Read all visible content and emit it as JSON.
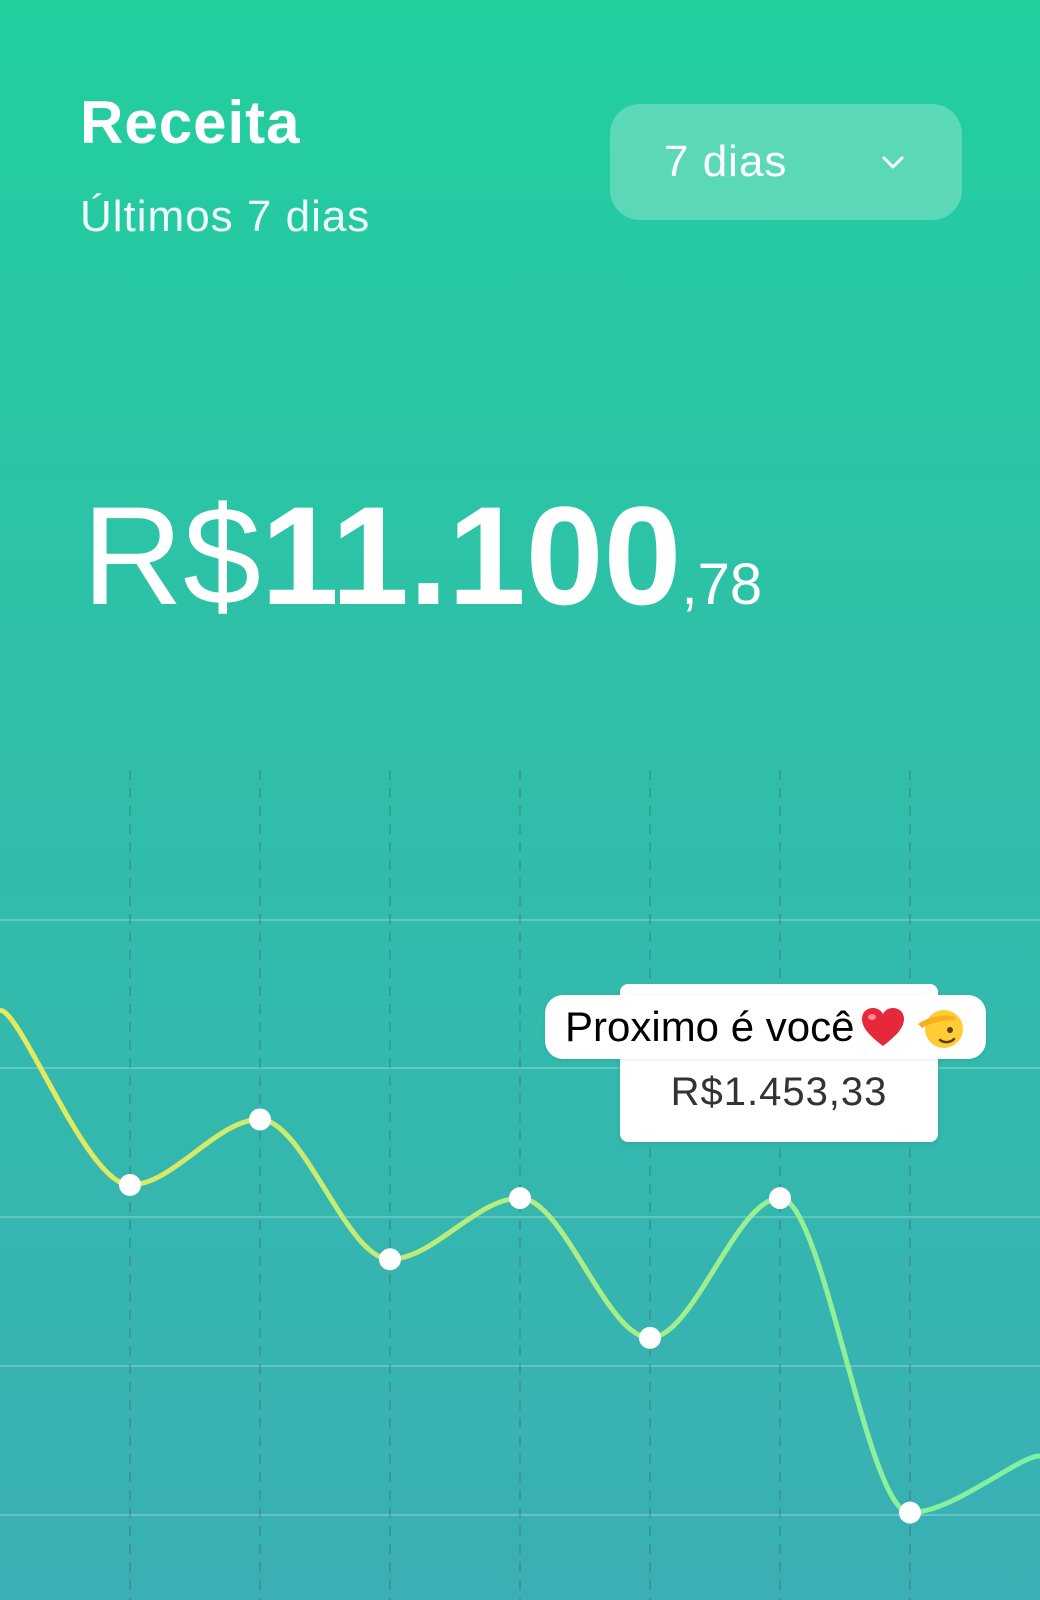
{
  "header": {
    "title": "Receita",
    "subtitle": "Últimos 7 dias"
  },
  "period_select": {
    "label": "7 dias",
    "icon": "chevron-down-icon"
  },
  "total": {
    "currency": "R$",
    "integer": "11.100",
    "cents": ",78"
  },
  "tooltip": {
    "value": "R$1.453,33"
  },
  "sticker": {
    "text": "Proximo é você",
    "icons": [
      "heart-icon",
      "saluting-face-icon"
    ]
  },
  "colors": {
    "background_top": "#22cf9f",
    "background_bottom": "#3aafb5",
    "line_start": "#e8e95a",
    "line_end": "#7cf1a6",
    "text": "#ffffff"
  },
  "chart_data": {
    "type": "line",
    "smooth": true,
    "x": [
      1,
      2,
      3,
      4,
      5,
      6,
      7
    ],
    "values": [
      1750,
      1900,
      1580,
      1720,
      1400,
      1720,
      1000
    ],
    "ylim": [
      800,
      2700
    ],
    "highlighted_index": 5,
    "grid": true
  }
}
